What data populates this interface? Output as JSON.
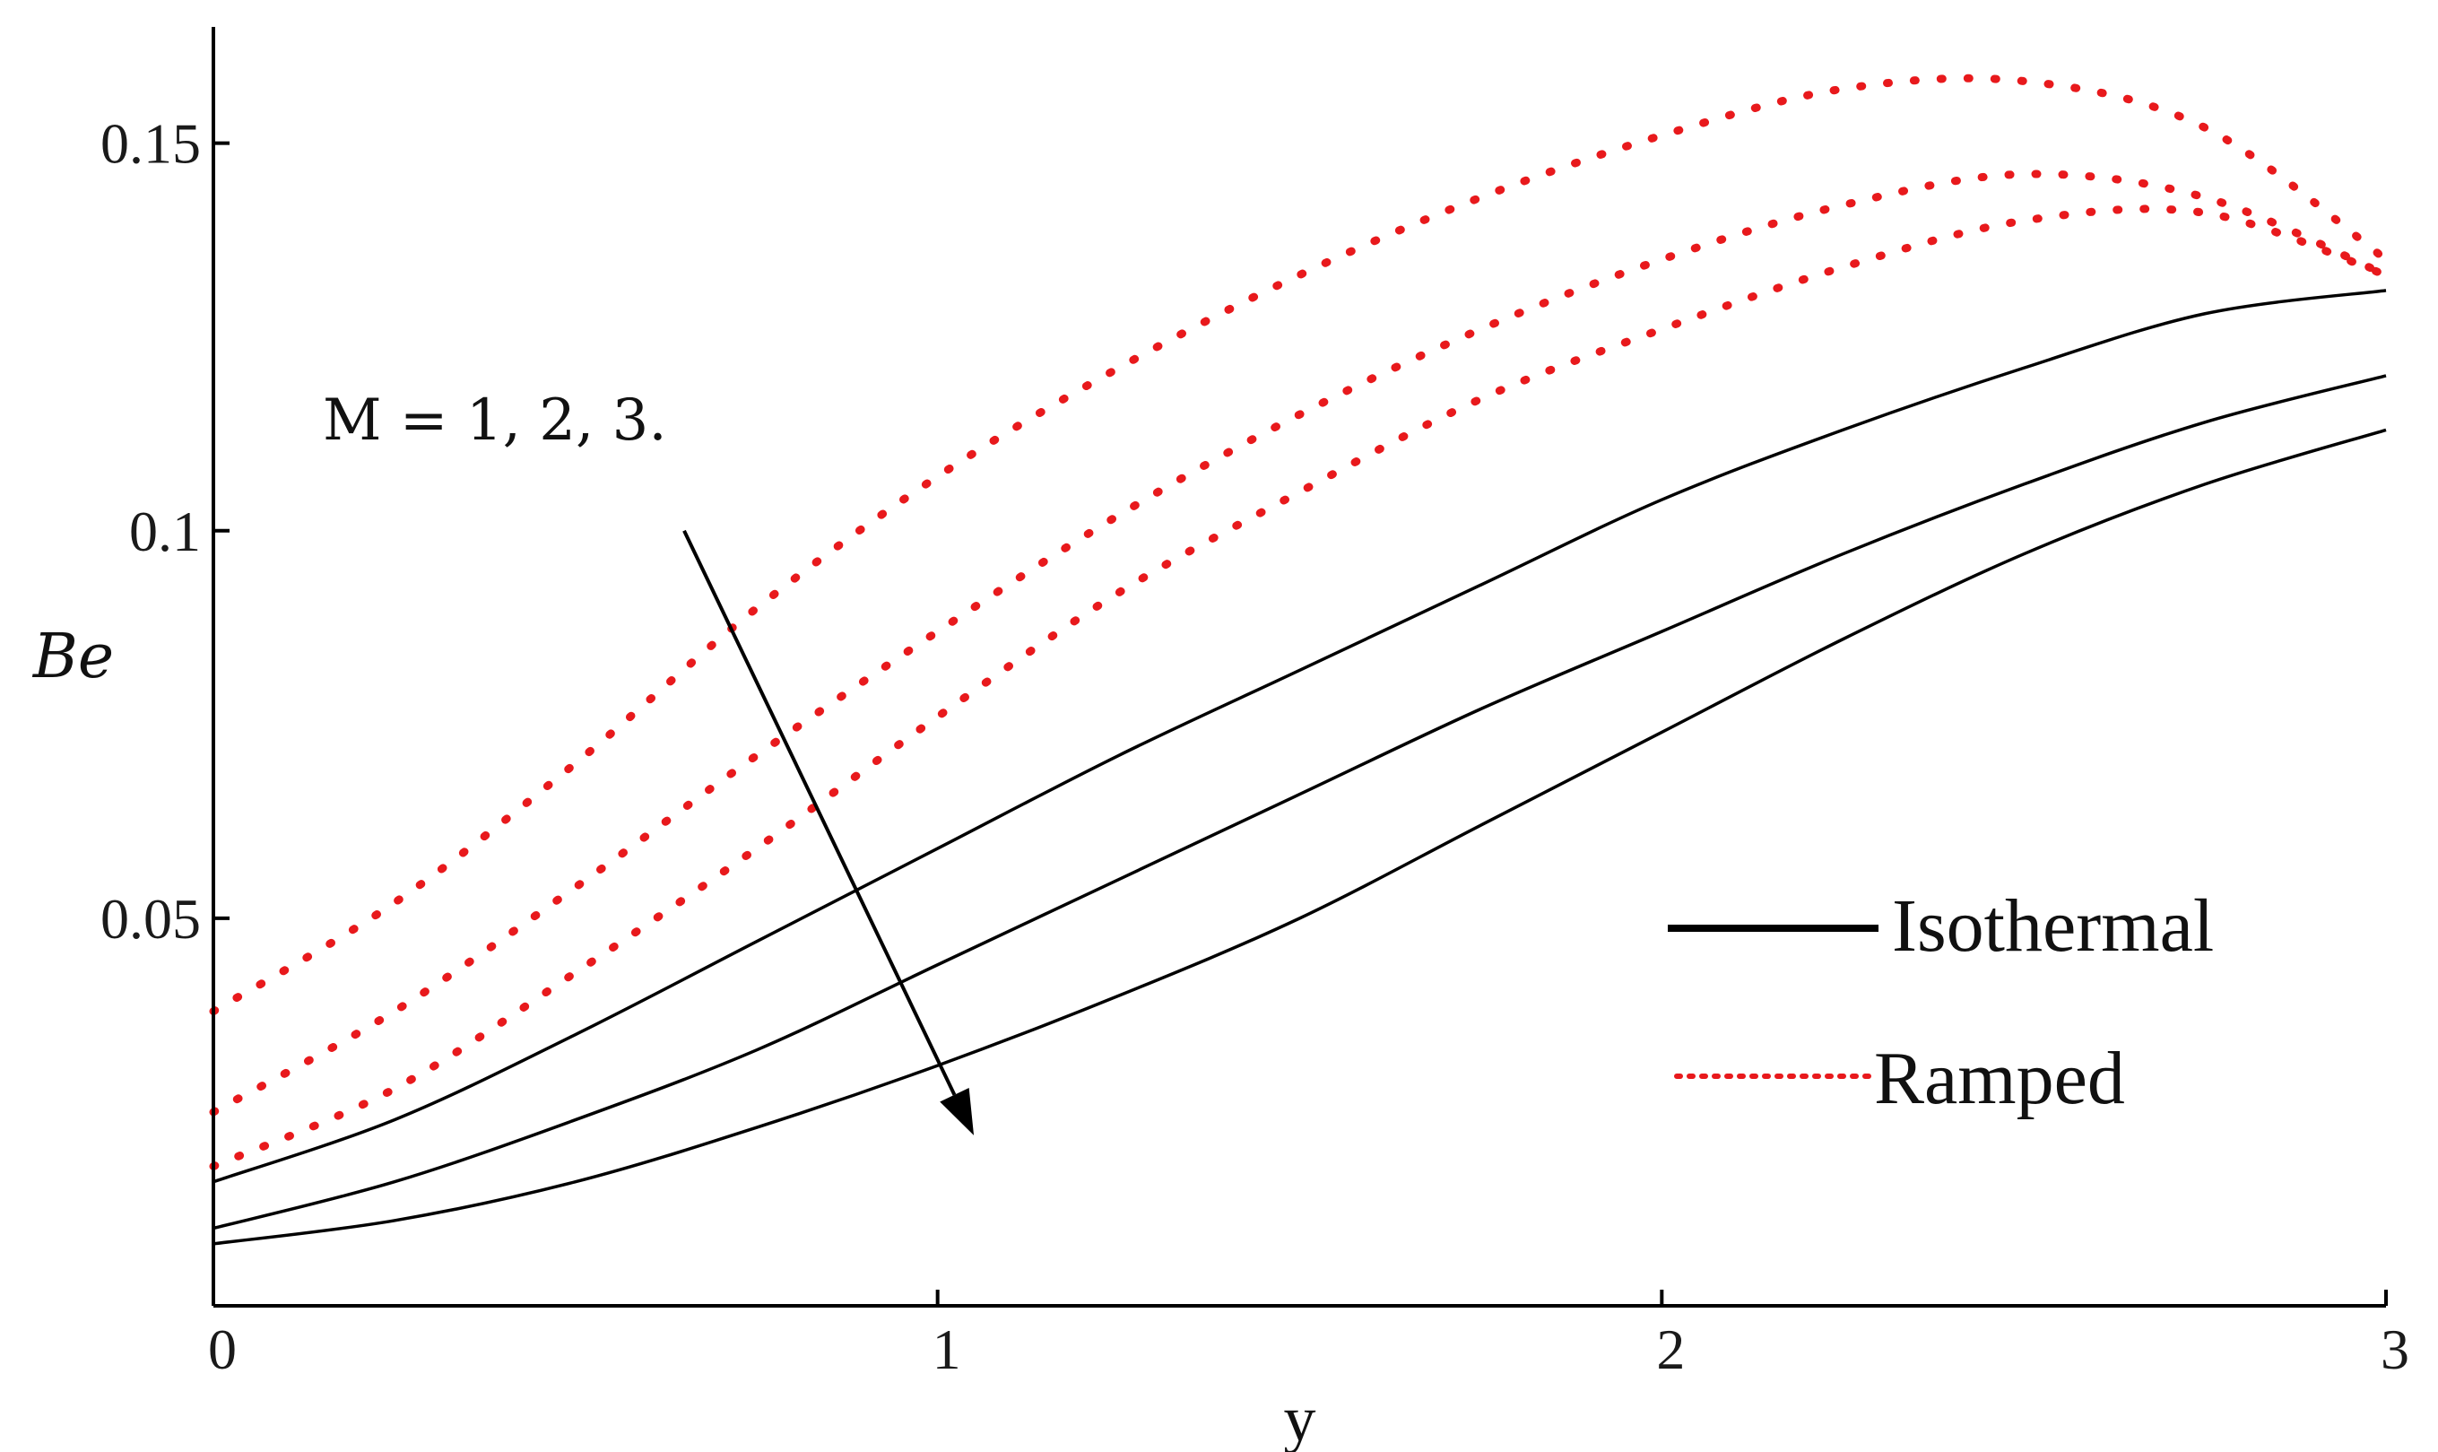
{
  "chart_data": {
    "type": "line",
    "xlabel": "y",
    "ylabel": "Be",
    "xlim": [
      0,
      3
    ],
    "ylim": [
      0,
      0.165
    ],
    "x_ticks": [
      0,
      1,
      2,
      3
    ],
    "x_tick_labels": [
      "0",
      "1",
      "2",
      "3"
    ],
    "y_ticks": [
      0.05,
      0.1,
      0.15
    ],
    "y_tick_labels": [
      "0.05",
      "0.1",
      "0.15"
    ],
    "grid": false,
    "legend_position": "bottom-right",
    "legend": [
      {
        "label": "Isothermal",
        "style": "solid",
        "color": "#000000"
      },
      {
        "label": "Ramped",
        "style": "dotted",
        "color": "#e8191c"
      }
    ],
    "annotation": {
      "text": "M = 1, 2, 3.",
      "arrow": {
        "from": [
          0.65,
          0.1
        ],
        "to": [
          1.05,
          0.022
        ]
      }
    },
    "x": [
      0,
      0.25,
      0.5,
      0.75,
      1.0,
      1.25,
      1.5,
      1.75,
      2.0,
      2.25,
      2.5,
      2.75,
      3.0
    ],
    "series": [
      {
        "group": "Isothermal",
        "style": "solid",
        "color": "#000000",
        "values": [
          0.016,
          0.024,
          0.035,
          0.047,
          0.059,
          0.071,
          0.082,
          0.093,
          0.104,
          0.113,
          0.121,
          0.128,
          0.131
        ]
      },
      {
        "group": "Isothermal",
        "style": "solid",
        "color": "#000000",
        "values": [
          0.01,
          0.016,
          0.024,
          0.033,
          0.044,
          0.055,
          0.066,
          0.077,
          0.087,
          0.097,
          0.106,
          0.114,
          0.12
        ]
      },
      {
        "group": "Isothermal",
        "style": "solid",
        "color": "#000000",
        "values": [
          0.008,
          0.011,
          0.016,
          0.023,
          0.031,
          0.04,
          0.05,
          0.062,
          0.074,
          0.086,
          0.097,
          0.106,
          0.113
        ]
      },
      {
        "group": "Ramped",
        "style": "dotted",
        "color": "#e8191c",
        "values": [
          0.038,
          0.052,
          0.07,
          0.09,
          0.107,
          0.121,
          0.133,
          0.143,
          0.151,
          0.157,
          0.158,
          0.152,
          0.135
        ]
      },
      {
        "group": "Ramped",
        "style": "dotted",
        "color": "#e8191c",
        "values": [
          0.025,
          0.038,
          0.054,
          0.071,
          0.087,
          0.102,
          0.115,
          0.126,
          0.135,
          0.142,
          0.146,
          0.143,
          0.133
        ]
      },
      {
        "group": "Ramped",
        "style": "dotted",
        "color": "#e8191c",
        "values": [
          0.018,
          0.028,
          0.043,
          0.059,
          0.076,
          0.092,
          0.105,
          0.117,
          0.126,
          0.134,
          0.14,
          0.141,
          0.133
        ]
      }
    ]
  }
}
